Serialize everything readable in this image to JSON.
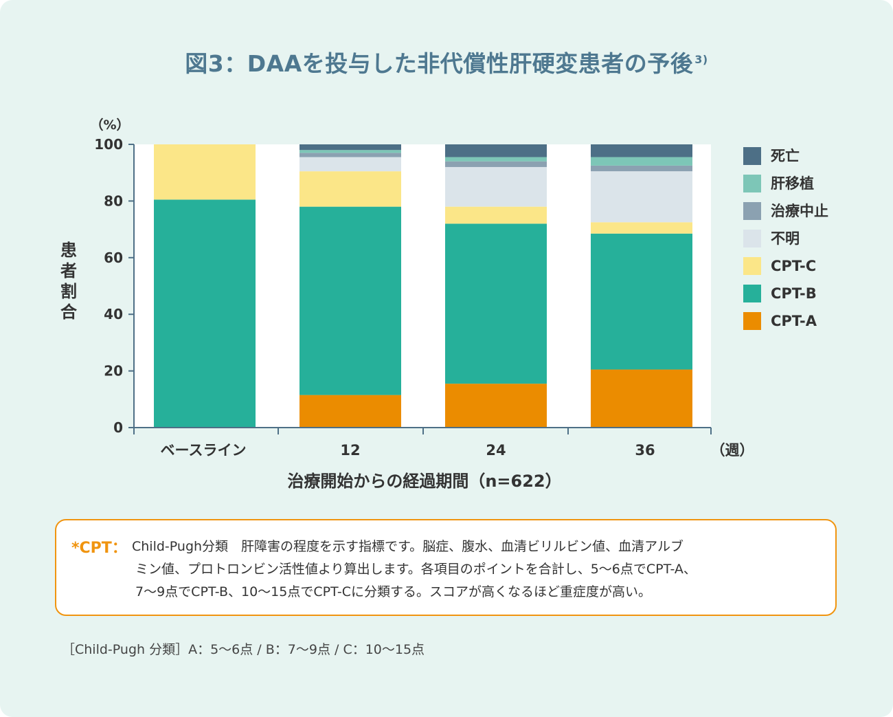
{
  "title": "図3：DAAを投与した非代償性肝硬変患者の予後",
  "title_ref": "3)",
  "chart_data": {
    "type": "bar",
    "stacked": true,
    "title": "図3：DAAを投与した非代償性肝硬変患者の予後",
    "xlabel": "治療開始からの経過期間（n=622）",
    "ylabel": "患者割合",
    "y_unit": "（%）",
    "x_unit": "（週）",
    "ylim": [
      0,
      100
    ],
    "yticks": [
      "0",
      "20",
      "40",
      "60",
      "80",
      "100"
    ],
    "categories": [
      "ベースライン",
      "12",
      "24",
      "36"
    ],
    "series": [
      {
        "name": "CPT-A",
        "color": "#eb8c00",
        "values": [
          0,
          11.5,
          15.5,
          20.5
        ]
      },
      {
        "name": "CPT-B",
        "color": "#26b09a",
        "values": [
          80.5,
          66.5,
          56.5,
          48
        ]
      },
      {
        "name": "CPT-C",
        "color": "#fbe688",
        "values": [
          19.5,
          12.5,
          6,
          4
        ]
      },
      {
        "name": "不明",
        "color": "#dbe4ea",
        "values": [
          0,
          5,
          14,
          18
        ]
      },
      {
        "name": "治療中止",
        "color": "#8ba1b1",
        "values": [
          0,
          1.5,
          2,
          2
        ]
      },
      {
        "name": "肝移植",
        "color": "#7dc6b7",
        "values": [
          0,
          1,
          1.5,
          3
        ]
      },
      {
        "name": "死亡",
        "color": "#4d6f86",
        "values": [
          0,
          2,
          4.5,
          4.5
        ]
      }
    ],
    "legend": [
      "死亡",
      "肝移植",
      "治療中止",
      "不明",
      "CPT-C",
      "CPT-B",
      "CPT-A"
    ],
    "legend_colors": [
      "#4d6f86",
      "#7dc6b7",
      "#8ba1b1",
      "#dbe4ea",
      "#fbe688",
      "#26b09a",
      "#eb8c00"
    ]
  },
  "note": {
    "key": "*CPT：",
    "line1": "Child-Pugh分類　肝障害の程度を示す指標です。脳症、腹水、血清ビリルビン値、血清アルブ",
    "line2": "ミン値、プロトロンビン活性値より算出します。各項目のポイントを合計し、5〜6点でCPT-A、",
    "line3": "7〜9点でCPT-B、10〜15点でCPT-Cに分類する。スコアが高くなるほど重症度が高い。"
  },
  "footer": "［Child-Pugh 分類］A：5〜6点 / B：7〜9点 / C：10〜15点"
}
